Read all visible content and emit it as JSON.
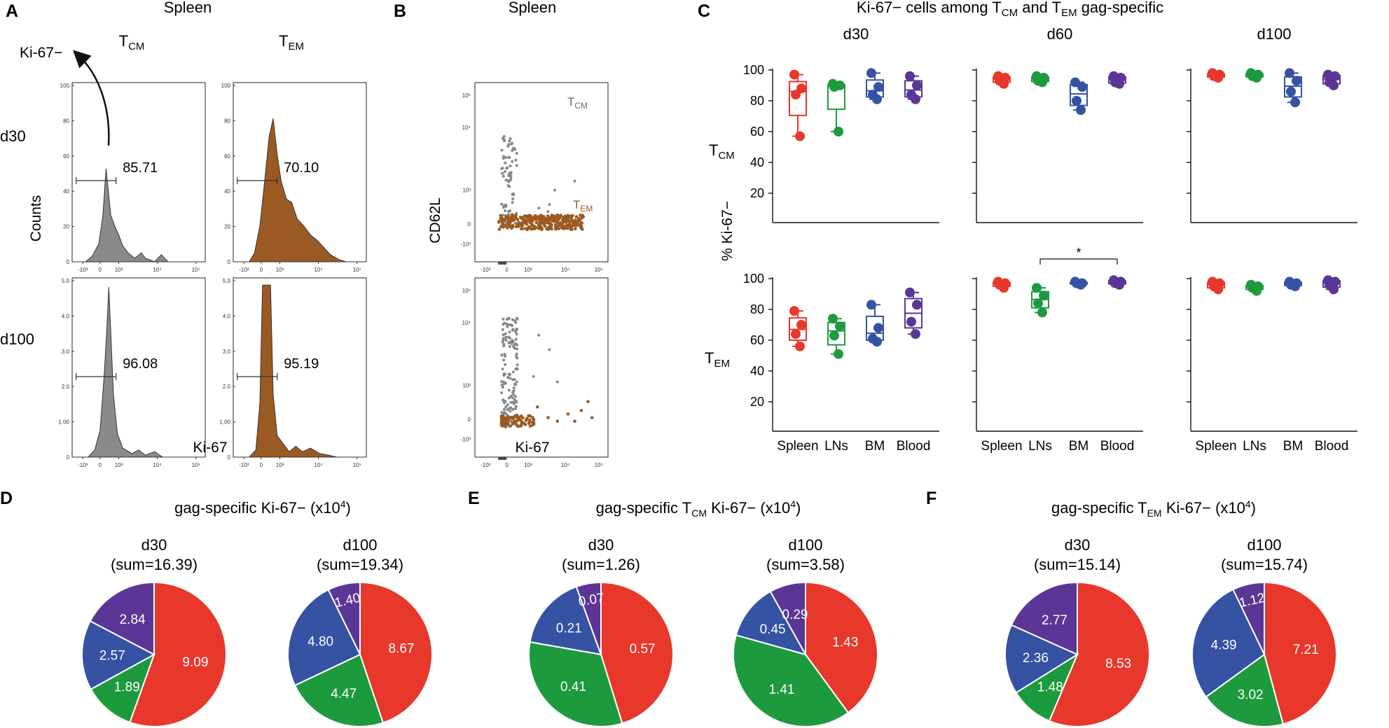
{
  "panel_labels": {
    "A": "A",
    "B": "B",
    "C": "C",
    "D": "D",
    "E": "E",
    "F": "F"
  },
  "panel_a": {
    "title": "Spleen",
    "col_tcm": {
      "main": "T",
      "sub": "CM"
    },
    "col_tem": {
      "main": "T",
      "sub": "EM"
    },
    "row_d30": "d30",
    "row_d100": "d100",
    "ki67_neg_label": "Ki-67−",
    "ylabel": "Counts",
    "xlabel": "Ki-67",
    "gate_values": {
      "d30_tcm": "85.71",
      "d30_tem": "70.10",
      "d100_tcm": "96.08",
      "d100_tem": "95.19"
    },
    "colors": {
      "tcm": "#8a8a8a",
      "tem": "#9b5a23"
    },
    "y_ticks_d30": [
      "100",
      "80",
      "60",
      "40",
      "20",
      "0"
    ],
    "y_ticks_d100": [
      "5.0",
      "4.0",
      "3.0",
      "2.0",
      "1.00",
      "0"
    ],
    "y_ticks_d100_tem": [
      "5.0",
      "4.0",
      "3.0",
      "2.0",
      "1.00",
      "0"
    ],
    "x_ticks": [
      "-10³",
      "0",
      "10³",
      "10⁴",
      "10⁵"
    ]
  },
  "panel_b": {
    "title": "Spleen",
    "ylabel": "CD62L",
    "xlabel": "Ki-67",
    "tcm_label": {
      "main": "T",
      "sub": "CM"
    },
    "tem_label": {
      "main": "T",
      "sub": "EM"
    },
    "y_ticks": [
      "10⁵",
      "10⁴",
      "10³",
      "0",
      "-10³"
    ],
    "x_ticks": [
      "-10³",
      "0",
      "10³",
      "10⁴",
      "10⁵"
    ]
  },
  "panel_c": {
    "title_parts": {
      "a": "Ki-67− cells among T",
      "b": "CM",
      "c": " and T",
      "d": "EM",
      "e": " gag-specific"
    },
    "ylabel": "% Ki-67−",
    "row_tcm": {
      "main": "T",
      "sub": "CM"
    },
    "row_tem": {
      "main": "T",
      "sub": "EM"
    },
    "significance": "*"
  },
  "panel_d": {
    "title_a": "gag-specific Ki-67− (x10",
    "title_sup": "4",
    "title_b": ")"
  },
  "panel_e": {
    "title_a": "gag-specific T",
    "title_sub": "CM",
    "title_b": " Ki-67− (x10",
    "title_sup": "4",
    "title_c": ")"
  },
  "panel_f": {
    "title_a": "gag-specific T",
    "title_sub": "EM",
    "title_b": " Ki-67− (x10",
    "title_sup": "4",
    "title_c": ")"
  },
  "chart_data": [
    {
      "type": "box",
      "panel": "C",
      "title": "Ki-67− cells among TCM and TEM gag-specific",
      "ylabel": "% Ki-67−",
      "ylim": [
        0,
        100
      ],
      "y_ticks": [
        20,
        40,
        60,
        80,
        100
      ],
      "categories": [
        "Spleen",
        "LNs",
        "BM",
        "Blood"
      ],
      "colors": {
        "Spleen": "#e8372b",
        "LNs": "#1e9a3e",
        "BM": "#3552a3",
        "Blood": "#5b3696"
      },
      "timepoints": [
        "d30",
        "d60",
        "d100"
      ],
      "rows": [
        {
          "name": "TCM",
          "groups": {
            "d30": [
              [
                97,
                88,
                84,
                57
              ],
              [
                91,
                90,
                89,
                60
              ],
              [
                98,
                89,
                84,
                81
              ],
              [
                96,
                90,
                84,
                81
              ]
            ],
            "d60": [
              [
                96,
                95,
                93,
                91
              ],
              [
                96,
                95,
                93,
                92
              ],
              [
                92,
                89,
                80,
                74
              ],
              [
                96,
                95,
                92,
                91
              ]
            ],
            "d100": [
              [
                98,
                97,
                96,
                95
              ],
              [
                98,
                97,
                96,
                95
              ],
              [
                98,
                93,
                86,
                79
              ],
              [
                97,
                96,
                92,
                90
              ]
            ]
          }
        },
        {
          "name": "TEM",
          "groups": {
            "d30": [
              [
                79,
                70,
                64,
                56
              ],
              [
                74,
                69,
                63,
                51
              ],
              [
                83,
                68,
                61,
                59
              ],
              [
                91,
                83,
                72,
                64
              ]
            ],
            "d60": [
              [
                98,
                97,
                96,
                94
              ],
              [
                94,
                89,
                84,
                78
              ],
              [
                98,
                97,
                97,
                96
              ],
              [
                99,
                98,
                97,
                96
              ]
            ],
            "d100": [
              [
                98,
                97,
                95,
                93
              ],
              [
                96,
                95,
                94,
                92
              ],
              [
                98,
                97,
                96,
                95
              ],
              [
                99,
                98,
                96,
                93
              ]
            ]
          }
        }
      ],
      "annotations": [
        {
          "row": "TEM",
          "timepoint": "d60",
          "from": "LNs",
          "to": "Blood",
          "text": "*"
        }
      ]
    },
    {
      "type": "pie",
      "panel": "D",
      "label": "d30",
      "sum_label": "(sum=16.39)",
      "values": [
        9.09,
        1.89,
        2.57,
        2.84
      ],
      "value_labels": [
        "9.09",
        "1.89",
        "2.57",
        "2.84"
      ],
      "categories": [
        "Spleen",
        "LNs",
        "BM",
        "Blood"
      ]
    },
    {
      "type": "pie",
      "panel": "D",
      "label": "d100",
      "sum_label": "(sum=19.34)",
      "values": [
        8.67,
        4.47,
        4.8,
        1.4
      ],
      "value_labels": [
        "8.67",
        "4.47",
        "4.80",
        "1.40"
      ],
      "categories": [
        "Spleen",
        "LNs",
        "BM",
        "Blood"
      ]
    },
    {
      "type": "pie",
      "panel": "E",
      "label": "d30",
      "sum_label": "(sum=1.26)",
      "values": [
        0.57,
        0.41,
        0.21,
        0.07
      ],
      "value_labels": [
        "0.57",
        "0.41",
        "0.21",
        "0.07"
      ],
      "categories": [
        "Spleen",
        "LNs",
        "BM",
        "Blood"
      ]
    },
    {
      "type": "pie",
      "panel": "E",
      "label": "d100",
      "sum_label": "(sum=3.58)",
      "values": [
        1.43,
        1.41,
        0.45,
        0.29
      ],
      "value_labels": [
        "1.43",
        "1.41",
        "0.45",
        "0.29"
      ],
      "categories": [
        "Spleen",
        "LNs",
        "BM",
        "Blood"
      ]
    },
    {
      "type": "pie",
      "panel": "F",
      "label": "d30",
      "sum_label": "(sum=15.14)",
      "values": [
        8.53,
        1.48,
        2.36,
        2.77
      ],
      "value_labels": [
        "8.53",
        "1.48",
        "2.36",
        "2.77"
      ],
      "categories": [
        "Spleen",
        "LNs",
        "BM",
        "Blood"
      ]
    },
    {
      "type": "pie",
      "panel": "F",
      "label": "d100",
      "sum_label": "(sum=15.74)",
      "values": [
        7.21,
        3.02,
        4.39,
        1.12
      ],
      "value_labels": [
        "7.21",
        "3.02",
        "4.39",
        "1.12"
      ],
      "categories": [
        "Spleen",
        "LNs",
        "BM",
        "Blood"
      ]
    }
  ]
}
